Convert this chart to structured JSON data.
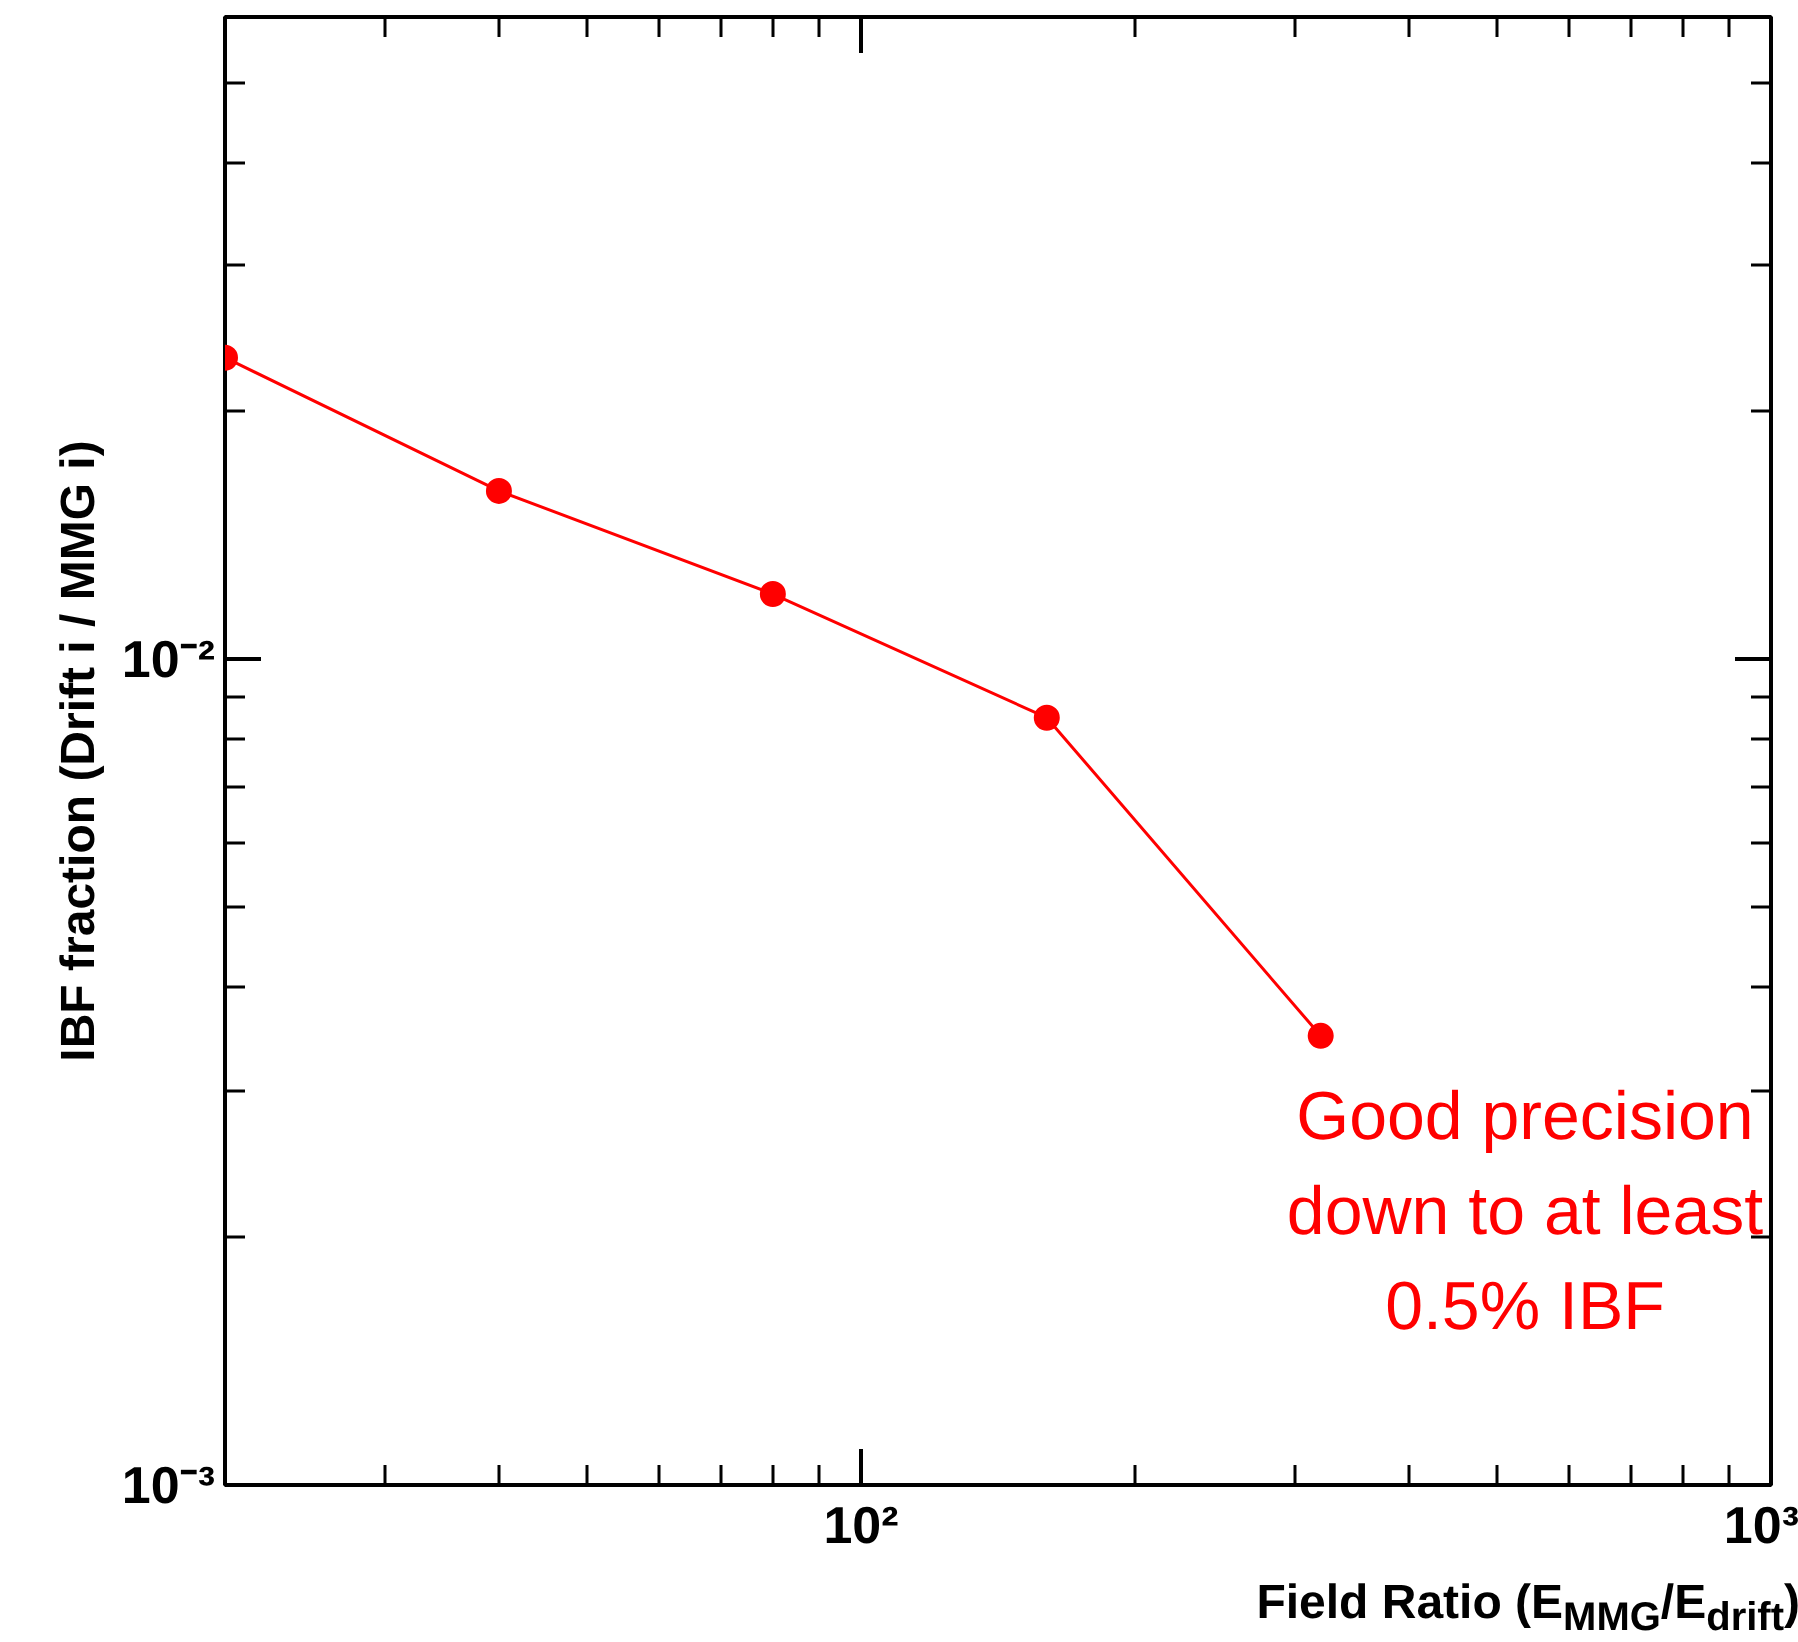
{
  "chart_data": {
    "type": "line",
    "xlabel": "Field Ratio (E$_{MMG}$/E$_{drift}$)",
    "ylabel": "IBF fraction (Drift i / MMG i)",
    "x": [
      20,
      40,
      80,
      160,
      320
    ],
    "series": [
      {
        "color": "#ff0000",
        "values": [
          0.0232,
          0.016,
          0.012,
          0.0085,
          0.0035
        ]
      }
    ],
    "log": "xy",
    "xlim": [
      20,
      1000
    ],
    "ylim": [
      0.001,
      0.06
    ],
    "xticks": [
      {
        "value": 100,
        "label": "10²"
      },
      {
        "value": 1000,
        "label": "10³"
      }
    ],
    "yticks": [
      {
        "value": 0.001,
        "label": "10⁻³"
      },
      {
        "value": 0.01,
        "label": "10⁻²"
      }
    ],
    "marker": "circle",
    "line_style": "solid",
    "grid": false,
    "annotations": [
      "Good precision\ndown to at least\n0.5% IBF"
    ]
  }
}
